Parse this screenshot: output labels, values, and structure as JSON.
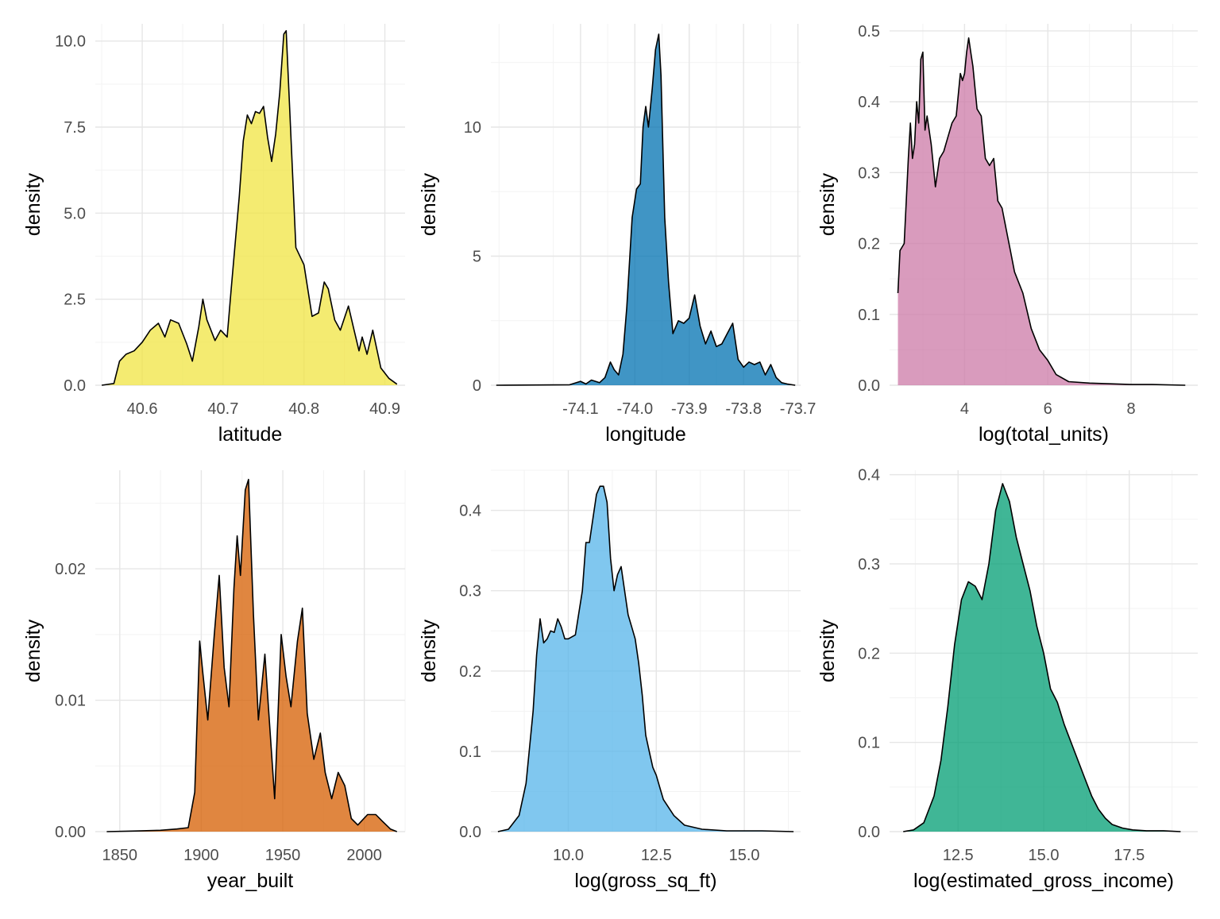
{
  "chart_data": [
    {
      "type": "area",
      "xlabel": "latitude",
      "ylabel": "density",
      "xlim": [
        40.542,
        40.925
      ],
      "ylim": [
        0,
        10.5
      ],
      "xticks": [
        40.6,
        40.7,
        40.8,
        40.9
      ],
      "xtick_labels": [
        "40.6",
        "40.7",
        "40.8",
        "40.9"
      ],
      "yticks": [
        0,
        2.5,
        5,
        7.5,
        10
      ],
      "ytick_labels": [
        "0.0",
        "2.5",
        "5.0",
        "7.5",
        "10.0"
      ],
      "grid": true,
      "fill": "#F0E442",
      "x": [
        40.55,
        40.565,
        40.572,
        40.58,
        40.59,
        40.6,
        40.61,
        40.62,
        40.628,
        40.635,
        40.645,
        40.655,
        40.662,
        40.67,
        40.675,
        40.68,
        40.69,
        40.697,
        40.705,
        40.71,
        40.72,
        40.725,
        40.73,
        40.735,
        40.74,
        40.745,
        40.75,
        40.755,
        40.76,
        40.765,
        40.77,
        40.775,
        40.778,
        40.782,
        40.79,
        40.8,
        40.81,
        40.818,
        40.825,
        40.83,
        40.838,
        40.845,
        40.855,
        40.862,
        40.868,
        40.872,
        40.878,
        40.885,
        40.895,
        40.905,
        40.915
      ],
      "values": [
        0,
        0.05,
        0.7,
        0.9,
        1.0,
        1.25,
        1.6,
        1.8,
        1.4,
        1.9,
        1.8,
        1.2,
        0.7,
        1.7,
        2.5,
        1.9,
        1.3,
        1.6,
        1.4,
        2.8,
        5.5,
        7.1,
        7.85,
        7.6,
        7.95,
        7.9,
        8.1,
        7.2,
        6.5,
        7.3,
        8.5,
        10.2,
        10.3,
        8.2,
        4.0,
        3.5,
        2.0,
        2.1,
        3.0,
        2.8,
        1.9,
        1.6,
        2.3,
        1.6,
        1.0,
        1.4,
        0.9,
        1.6,
        0.5,
        0.2,
        0.03
      ]
    },
    {
      "type": "area",
      "xlabel": "longitude",
      "ylabel": "density",
      "xlim": [
        -74.265,
        -73.695
      ],
      "ylim": [
        0,
        14.0
      ],
      "xticks": [
        -74.1,
        -74.0,
        -73.9,
        -73.8,
        -73.7
      ],
      "xtick_labels": [
        "-74.1",
        "-74.0",
        "-73.9",
        "-73.8",
        "-73.7"
      ],
      "yticks": [
        0,
        5,
        10
      ],
      "ytick_labels": [
        "0",
        "5",
        "10"
      ],
      "grid": true,
      "fill": "#0072B2",
      "x": [
        -74.255,
        -74.12,
        -74.1,
        -74.09,
        -74.08,
        -74.065,
        -74.055,
        -74.045,
        -74.038,
        -74.03,
        -74.022,
        -74.015,
        -74.005,
        -73.997,
        -73.99,
        -73.985,
        -73.98,
        -73.975,
        -73.968,
        -73.962,
        -73.956,
        -73.952,
        -73.945,
        -73.938,
        -73.93,
        -73.92,
        -73.91,
        -73.9,
        -73.89,
        -73.88,
        -73.87,
        -73.86,
        -73.85,
        -73.84,
        -73.83,
        -73.82,
        -73.81,
        -73.8,
        -73.79,
        -73.78,
        -73.77,
        -73.76,
        -73.75,
        -73.74,
        -73.73,
        -73.72,
        -73.705
      ],
      "values": [
        0,
        0.02,
        0.15,
        0.05,
        0.2,
        0.1,
        0.3,
        0.9,
        0.6,
        0.4,
        1.2,
        3.0,
        6.5,
        7.6,
        7.8,
        10.0,
        10.8,
        10.0,
        11.5,
        13.0,
        13.6,
        12.0,
        6.5,
        4.0,
        2.0,
        2.5,
        2.4,
        2.6,
        3.5,
        2.3,
        1.6,
        2.1,
        1.5,
        1.6,
        2.0,
        2.4,
        1.0,
        0.7,
        0.9,
        0.8,
        0.9,
        0.4,
        0.8,
        0.3,
        0.1,
        0.05,
        0
      ]
    },
    {
      "type": "area",
      "xlabel": "log(total_units)",
      "ylabel": "density",
      "xlim": [
        2.2,
        9.6
      ],
      "ylim": [
        0,
        0.51
      ],
      "xticks": [
        4,
        6,
        8
      ],
      "xtick_labels": [
        "4",
        "6",
        "8"
      ],
      "yticks": [
        0,
        0.1,
        0.2,
        0.3,
        0.4,
        0.5
      ],
      "ytick_labels": [
        "0.0",
        "0.1",
        "0.2",
        "0.3",
        "0.4",
        "0.5"
      ],
      "grid": true,
      "fill": "#CC79A7",
      "x": [
        2.4,
        2.45,
        2.55,
        2.65,
        2.7,
        2.75,
        2.8,
        2.85,
        2.9,
        2.95,
        3.0,
        3.05,
        3.1,
        3.2,
        3.3,
        3.4,
        3.5,
        3.6,
        3.7,
        3.8,
        3.9,
        3.95,
        4.0,
        4.05,
        4.1,
        4.15,
        4.2,
        4.3,
        4.4,
        4.5,
        4.6,
        4.7,
        4.8,
        4.9,
        5.0,
        5.1,
        5.2,
        5.4,
        5.6,
        5.8,
        6.0,
        6.2,
        6.5,
        7.0,
        7.5,
        8.0,
        8.5,
        9.3
      ],
      "values": [
        0.13,
        0.19,
        0.2,
        0.32,
        0.37,
        0.32,
        0.34,
        0.4,
        0.37,
        0.46,
        0.47,
        0.36,
        0.38,
        0.34,
        0.28,
        0.32,
        0.33,
        0.35,
        0.37,
        0.38,
        0.44,
        0.43,
        0.44,
        0.47,
        0.49,
        0.47,
        0.45,
        0.39,
        0.38,
        0.32,
        0.31,
        0.32,
        0.26,
        0.25,
        0.22,
        0.19,
        0.16,
        0.13,
        0.08,
        0.05,
        0.035,
        0.015,
        0.005,
        0.003,
        0.002,
        0.001,
        0.001,
        0
      ]
    },
    {
      "type": "area",
      "xlabel": "year_built",
      "ylabel": "density",
      "xlim": [
        1835,
        2025
      ],
      "ylim": [
        0,
        0.0275
      ],
      "xticks": [
        1850,
        1900,
        1950,
        2000
      ],
      "xtick_labels": [
        "1850",
        "1900",
        "1950",
        "2000"
      ],
      "yticks": [
        0,
        0.01,
        0.02
      ],
      "ytick_labels": [
        "0.00",
        "0.01",
        "0.02"
      ],
      "grid": true,
      "fill": "#D55E00",
      "x": [
        1842,
        1860,
        1875,
        1885,
        1892,
        1896,
        1899,
        1901,
        1904,
        1908,
        1911,
        1914,
        1917,
        1920,
        1922,
        1924,
        1927,
        1929,
        1932,
        1935,
        1939,
        1942,
        1945,
        1949,
        1952,
        1955,
        1959,
        1962,
        1965,
        1969,
        1973,
        1976,
        1980,
        1984,
        1988,
        1992,
        1996,
        2002,
        2007,
        2011,
        2016,
        2020
      ],
      "values": [
        0,
        5e-05,
        0.0001,
        0.0002,
        0.0003,
        0.003,
        0.0145,
        0.012,
        0.0085,
        0.015,
        0.0195,
        0.0125,
        0.0095,
        0.0185,
        0.0225,
        0.0195,
        0.026,
        0.0268,
        0.0165,
        0.0085,
        0.0135,
        0.008,
        0.0025,
        0.015,
        0.0118,
        0.0095,
        0.0145,
        0.017,
        0.009,
        0.0055,
        0.0075,
        0.0045,
        0.0025,
        0.0045,
        0.0035,
        0.001,
        0.0005,
        0.0013,
        0.0013,
        0.0008,
        0.0002,
        0
      ]
    },
    {
      "type": "area",
      "xlabel": "log(gross_sq_ft)",
      "ylabel": "density",
      "xlim": [
        7.8,
        16.6
      ],
      "ylim": [
        0,
        0.45
      ],
      "xticks": [
        10,
        12.5,
        15
      ],
      "xtick_labels": [
        "10.0",
        "12.5",
        "15.0"
      ],
      "yticks": [
        0,
        0.1,
        0.2,
        0.3,
        0.4
      ],
      "ytick_labels": [
        "0.0",
        "0.1",
        "0.2",
        "0.3",
        "0.4"
      ],
      "grid": true,
      "fill": "#56B4E9",
      "x": [
        8.0,
        8.3,
        8.6,
        8.8,
        9.0,
        9.1,
        9.2,
        9.3,
        9.4,
        9.5,
        9.6,
        9.7,
        9.8,
        9.9,
        10.0,
        10.2,
        10.4,
        10.5,
        10.6,
        10.7,
        10.8,
        10.9,
        11.0,
        11.1,
        11.2,
        11.3,
        11.4,
        11.5,
        11.6,
        11.7,
        11.8,
        11.9,
        12.0,
        12.1,
        12.2,
        12.3,
        12.4,
        12.5,
        12.6,
        12.7,
        13.0,
        13.3,
        13.8,
        14.5,
        15.5,
        16.4
      ],
      "values": [
        0,
        0.003,
        0.02,
        0.06,
        0.15,
        0.22,
        0.265,
        0.235,
        0.24,
        0.25,
        0.248,
        0.265,
        0.255,
        0.24,
        0.24,
        0.245,
        0.3,
        0.36,
        0.36,
        0.39,
        0.42,
        0.43,
        0.43,
        0.41,
        0.34,
        0.3,
        0.32,
        0.33,
        0.3,
        0.27,
        0.255,
        0.24,
        0.21,
        0.17,
        0.12,
        0.1,
        0.08,
        0.07,
        0.055,
        0.04,
        0.02,
        0.008,
        0.003,
        0.001,
        0.001,
        0
      ]
    },
    {
      "type": "area",
      "xlabel": "log(estimated_gross_income)",
      "ylabel": "density",
      "xlim": [
        10.5,
        19.5
      ],
      "ylim": [
        0,
        0.405
      ],
      "xticks": [
        12.5,
        15,
        17.5
      ],
      "xtick_labels": [
        "12.5",
        "15.0",
        "17.5"
      ],
      "yticks": [
        0,
        0.1,
        0.2,
        0.3,
        0.4
      ],
      "ytick_labels": [
        "0.0",
        "0.1",
        "0.2",
        "0.3",
        "0.4"
      ],
      "grid": true,
      "fill": "#009E73",
      "x": [
        10.9,
        11.2,
        11.5,
        11.8,
        12.0,
        12.2,
        12.4,
        12.6,
        12.8,
        13.0,
        13.2,
        13.4,
        13.6,
        13.8,
        14.0,
        14.2,
        14.4,
        14.6,
        14.8,
        15.0,
        15.2,
        15.4,
        15.6,
        15.8,
        16.0,
        16.2,
        16.4,
        16.6,
        16.8,
        17.0,
        17.3,
        17.6,
        18.0,
        18.5,
        19.0
      ],
      "values": [
        0,
        0.002,
        0.01,
        0.04,
        0.08,
        0.14,
        0.21,
        0.26,
        0.28,
        0.275,
        0.26,
        0.3,
        0.36,
        0.39,
        0.37,
        0.33,
        0.3,
        0.27,
        0.23,
        0.2,
        0.16,
        0.145,
        0.12,
        0.1,
        0.08,
        0.06,
        0.04,
        0.025,
        0.015,
        0.008,
        0.004,
        0.002,
        0.001,
        0.001,
        0
      ]
    }
  ]
}
